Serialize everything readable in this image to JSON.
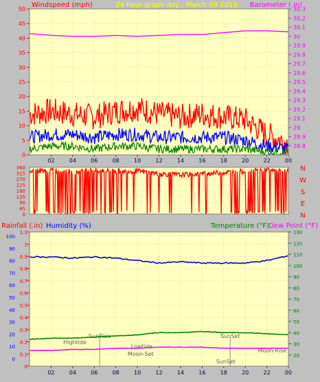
{
  "header": {
    "left_label": "Windspeed (mph)",
    "center_title": "24 hour graph day : March 09 2018",
    "right_label": "Barometer (.in)"
  },
  "lower_header": {
    "rain_label": "Rainfall (.in)",
    "humidity_label": "Humidity (%)",
    "temp_label": "Temperature (°F)",
    "dew_label": "Dew Point (°F)"
  },
  "direction_labels": [
    "N",
    "W",
    "S",
    "E",
    "N"
  ],
  "events": {
    "hightide": {
      "label": "Hightide",
      "hour": 4.2
    },
    "sunrise": {
      "label": "SunRise",
      "hour": 6.5
    },
    "lowtide": {
      "label": "Lowtide",
      "hour": 10.4
    },
    "moonset": {
      "label": "Moon-Set",
      "hour": 10.3
    },
    "sunset_a": {
      "label": "SunSet",
      "hour": 18.6
    },
    "sunset_b": {
      "label": "SunSet",
      "hour": 18.2
    },
    "moonrise": {
      "label": "Moon-Rise",
      "hour": 22.5
    }
  },
  "colors": {
    "plot_bg": "#ffffc0",
    "gust": "#ff0000",
    "wind": "#0000ff",
    "wind_min": "#008000",
    "barometer": "#ff00ff",
    "direction": "#ff0000",
    "humidity": "#0000cc",
    "temperature": "#008000",
    "dewpoint": "#ff00ff",
    "title": "#ffff00",
    "left_axis": "#ff0000",
    "right_axis": "#ff00ff"
  },
  "chart_data": [
    {
      "type": "line",
      "x_ticks": [
        "02",
        "04",
        "06",
        "08",
        "10",
        "12",
        "14",
        "16",
        "18",
        "20",
        "22",
        "00"
      ],
      "xlim_hours": [
        0,
        24
      ],
      "y_left": {
        "label": "Windspeed (mph)",
        "lim": [
          0,
          50
        ],
        "ticks": [
          0,
          5,
          10,
          15,
          20,
          25,
          30,
          35,
          40,
          45,
          50
        ]
      },
      "y_right": {
        "label": "Barometer (.in)",
        "lim": [
          28.7,
          30.3
        ],
        "ticks": [
          28.8,
          28.9,
          29,
          29.1,
          29.2,
          29.3,
          29.4,
          29.5,
          29.6,
          29.7,
          29.8,
          29.9,
          30,
          30.1,
          30.2,
          30.3
        ]
      },
      "series": [
        {
          "key": "gust",
          "x": [
            0,
            2,
            4,
            6,
            8,
            10,
            12,
            14,
            16,
            18,
            20,
            22,
            24
          ],
          "y": [
            14,
            15,
            14,
            13,
            15,
            16,
            14,
            13,
            14,
            13,
            12,
            7,
            4
          ]
        },
        {
          "key": "wind",
          "x": [
            0,
            2,
            4,
            6,
            8,
            10,
            12,
            14,
            16,
            18,
            20,
            22,
            24
          ],
          "y": [
            6,
            7,
            7,
            6,
            7,
            7,
            6,
            6,
            6,
            6,
            5,
            3,
            2
          ]
        },
        {
          "key": "wind_min",
          "x": [
            0,
            2,
            4,
            6,
            8,
            10,
            12,
            14,
            16,
            18,
            20,
            22,
            24
          ],
          "y": [
            2,
            3,
            3,
            2,
            3,
            3,
            2,
            2,
            2,
            2,
            2,
            1,
            1
          ]
        },
        {
          "key": "barometer",
          "axis": "right",
          "x": [
            0,
            2,
            4,
            6,
            8,
            10,
            12,
            14,
            16,
            18,
            20,
            22,
            24
          ],
          "y": [
            30.03,
            30.01,
            30.0,
            30.0,
            30.01,
            30.0,
            30.01,
            30.02,
            30.02,
            30.04,
            30.06,
            30.06,
            30.05
          ]
        }
      ]
    },
    {
      "type": "scatter",
      "x_ticks": [
        "02",
        "04",
        "06",
        "08",
        "10",
        "12",
        "14",
        "16",
        "18",
        "20",
        "22",
        "00"
      ],
      "xlim_hours": [
        0,
        24
      ],
      "y_left": {
        "lim": [
          0,
          360
        ],
        "ticks": [
          0,
          45,
          90,
          135,
          180,
          225,
          270,
          315,
          360
        ]
      },
      "series": [
        {
          "key": "direction",
          "x": [
            0,
            2,
            4,
            6,
            8,
            10,
            12,
            14,
            16,
            18,
            20,
            22,
            24
          ],
          "y": [
            330,
            340,
            320,
            335,
            330,
            330,
            310,
            300,
            310,
            320,
            330,
            340,
            330
          ]
        }
      ]
    },
    {
      "type": "line",
      "x_ticks": [
        "02",
        "04",
        "06",
        "08",
        "10",
        "12",
        "14",
        "16",
        "18",
        "20",
        "22",
        "00"
      ],
      "xlim_hours": [
        0,
        24
      ],
      "y_left_rain": {
        "label": "Rainfall (.in)",
        "lim": [
          0,
          1.1
        ],
        "ticks": [
          0,
          0.1,
          0.2,
          0.3,
          0.4,
          0.5,
          0.6,
          0.7,
          0.8,
          0.9,
          1,
          1.1
        ]
      },
      "y_left_humidity": {
        "label": "Humidity (%)",
        "lim": [
          0,
          100
        ],
        "ticks": [
          0,
          10,
          20,
          30,
          40,
          50,
          60,
          70,
          80,
          90,
          100
        ]
      },
      "y_right": {
        "label": "Temperature (°F)",
        "lim": [
          10,
          130
        ],
        "ticks": [
          20,
          30,
          40,
          50,
          60,
          70,
          80,
          90,
          100,
          110,
          120,
          130
        ]
      },
      "series": [
        {
          "key": "humidity",
          "axis": "humidity",
          "x": [
            0,
            2,
            4,
            6,
            8,
            10,
            12,
            14,
            16,
            18,
            20,
            22,
            24
          ],
          "y": [
            83,
            83,
            82,
            83,
            82,
            80,
            78,
            79,
            78,
            78,
            78,
            80,
            84
          ]
        },
        {
          "key": "temperature",
          "axis": "right",
          "x": [
            0,
            2,
            4,
            6,
            8,
            10,
            12,
            14,
            16,
            18,
            20,
            22,
            24
          ],
          "y": [
            34,
            35,
            35,
            36,
            37,
            38,
            40,
            40,
            41,
            40,
            40,
            39,
            38
          ]
        },
        {
          "key": "dewpoint",
          "axis": "right",
          "x": [
            0,
            2,
            4,
            6,
            8,
            10,
            12,
            14,
            16,
            18,
            20,
            22,
            24
          ],
          "y": [
            24,
            24,
            25,
            25,
            26,
            26,
            27,
            27,
            27,
            26,
            26,
            26,
            26
          ]
        }
      ]
    }
  ]
}
